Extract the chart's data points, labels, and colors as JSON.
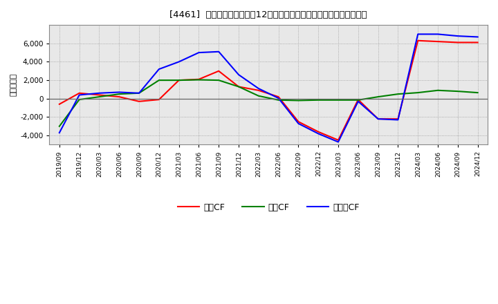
{
  "title": "[4461]  キャッシュフローの12か月移動合計の対前年同期増減額の推移",
  "ylabel": "（百万円）",
  "background_color": "#ffffff",
  "plot_background": "#e8e8e8",
  "grid_color": "#999999",
  "x_labels": [
    "2019/09",
    "2019/12",
    "2020/03",
    "2020/06",
    "2020/09",
    "2020/12",
    "2021/03",
    "2021/06",
    "2021/09",
    "2021/12",
    "2022/03",
    "2022/06",
    "2022/09",
    "2022/12",
    "2023/03",
    "2023/06",
    "2023/09",
    "2023/12",
    "2024/03",
    "2024/06",
    "2024/09",
    "2024/12"
  ],
  "operating_cf": [
    -600,
    600,
    400,
    200,
    -300,
    -100,
    2000,
    2100,
    3000,
    1300,
    900,
    200,
    -2500,
    -3600,
    -4500,
    -100,
    -2200,
    -2200,
    6300,
    6200,
    6100,
    6100
  ],
  "investing_cf": [
    -3000,
    -100,
    200,
    500,
    600,
    2000,
    2000,
    2050,
    2000,
    1300,
    300,
    -150,
    -200,
    -150,
    -150,
    -150,
    200,
    500,
    650,
    900,
    800,
    650
  ],
  "free_cf": [
    -3700,
    400,
    600,
    700,
    600,
    3200,
    4000,
    5000,
    5100,
    2600,
    1100,
    50,
    -2700,
    -3800,
    -4700,
    -300,
    -2200,
    -2300,
    7000,
    7000,
    6800,
    6700
  ],
  "operating_color": "#ff0000",
  "investing_color": "#008000",
  "free_color": "#0000ff",
  "ylim": [
    -5000,
    8000
  ],
  "yticks": [
    -4000,
    -2000,
    0,
    2000,
    4000,
    6000
  ],
  "legend_labels": [
    "営業CF",
    "投資CF",
    "フリーCF"
  ]
}
